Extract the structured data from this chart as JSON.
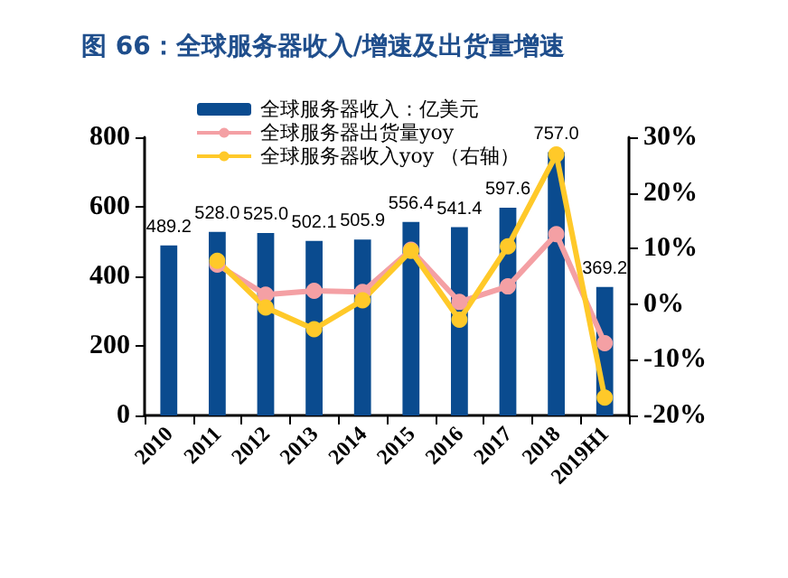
{
  "chart_data": {
    "type": "bar",
    "title": "图 66：全球服务器收入/增速及出货量增速",
    "categories": [
      "2010",
      "2011",
      "2012",
      "2013",
      "2014",
      "2015",
      "2016",
      "2017",
      "2018",
      "2019H1"
    ],
    "series": [
      {
        "name": "全球服务器收入：亿美元",
        "color": "#0a4b8f",
        "values": [
          489.2,
          528.0,
          525.0,
          502.1,
          505.9,
          556.4,
          541.4,
          597.6,
          757.0,
          369.2
        ],
        "value_labels": [
          "489.2",
          "528.0",
          "525.0",
          "502.1",
          "505.9",
          "556.4",
          "541.4",
          "597.6",
          "757.0",
          "369.2"
        ]
      },
      {
        "name": "全球服务器出货量yoy",
        "type": "line",
        "axis": "y2",
        "color": "#f4a0a4",
        "values": [
          null,
          7.1,
          1.7,
          2.4,
          2.2,
          9.8,
          0.4,
          3.2,
          12.6,
          -7.0
        ]
      },
      {
        "name": "全球服务器收入yoy （右轴）",
        "type": "line",
        "axis": "y2",
        "color": "#ffc929",
        "values": [
          null,
          7.8,
          -0.6,
          -4.5,
          0.7,
          9.6,
          -2.8,
          10.4,
          26.9,
          -16.8
        ]
      }
    ],
    "ylim": [
      0,
      800
    ],
    "yticks": [
      0,
      200,
      400,
      600,
      800
    ],
    "y2lim": [
      -20,
      30
    ],
    "y2ticks": [
      {
        "value": -20,
        "label": "-20%"
      },
      {
        "value": -10,
        "label": "-10%"
      },
      {
        "value": 0,
        "label": "0%"
      },
      {
        "value": 10,
        "label": "10%"
      },
      {
        "value": 20,
        "label": "20%"
      },
      {
        "value": 30,
        "label": "30%"
      }
    ],
    "marker": "circle",
    "line_style": "solid",
    "grid": false,
    "legend": "top left"
  }
}
